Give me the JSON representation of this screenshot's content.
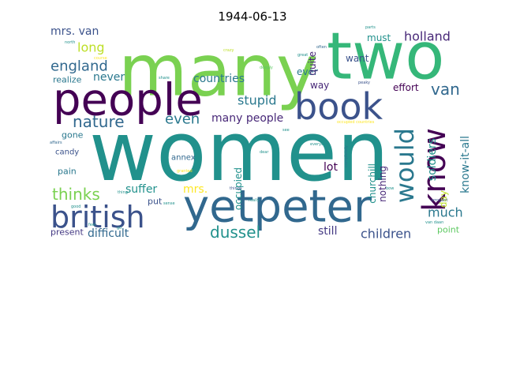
{
  "chart_data": {
    "type": "wordcloud",
    "title": "1944-06-13",
    "colormap": "viridis",
    "background": "#ffffff",
    "words": [
      {
        "text": "women",
        "color": "#21918c"
      },
      {
        "text": "many",
        "color": "#7ad151"
      },
      {
        "text": "two",
        "color": "#35b779"
      },
      {
        "text": "people",
        "color": "#440154"
      },
      {
        "text": "yetpeter",
        "color": "#31688e"
      },
      {
        "text": "book",
        "color": "#3b528b"
      },
      {
        "text": "british",
        "color": "#3b528b"
      },
      {
        "text": "know",
        "color": "#440154"
      },
      {
        "text": "would",
        "color": "#2a788e"
      },
      {
        "text": "nature",
        "color": "#31688e"
      },
      {
        "text": "thinks",
        "color": "#7ad151"
      },
      {
        "text": "dussel",
        "color": "#21918c"
      },
      {
        "text": "van",
        "color": "#31688e"
      },
      {
        "text": "england",
        "color": "#31688e"
      },
      {
        "text": "even",
        "color": "#2a788e"
      },
      {
        "text": "long",
        "color": "#bddf26"
      },
      {
        "text": "stupid",
        "color": "#2a788e"
      },
      {
        "text": "children",
        "color": "#3b528b"
      },
      {
        "text": "much",
        "color": "#2a788e"
      },
      {
        "text": "holland",
        "color": "#482878"
      },
      {
        "text": "mrs. van",
        "color": "#3b528b"
      },
      {
        "text": "never",
        "color": "#2a788e"
      },
      {
        "text": "countries",
        "color": "#2a788e"
      },
      {
        "text": "many people",
        "color": "#482878"
      },
      {
        "text": "know-it-all",
        "color": "#2a788e"
      },
      {
        "text": "soldiers",
        "color": "#21918c"
      },
      {
        "text": "suffer",
        "color": "#21918c"
      },
      {
        "text": "mrs.",
        "color": "#fde725"
      },
      {
        "text": "difficult",
        "color": "#31688e"
      },
      {
        "text": "still",
        "color": "#443983"
      },
      {
        "text": "lot",
        "color": "#440154"
      },
      {
        "text": "churchill",
        "color": "#21918c"
      },
      {
        "text": "occupied",
        "color": "#21918c"
      },
      {
        "text": "nothing",
        "color": "#482878"
      },
      {
        "text": "day",
        "color": "#bddf26"
      },
      {
        "text": "must",
        "color": "#21918c"
      },
      {
        "text": "want",
        "color": "#3b528b"
      },
      {
        "text": "way",
        "color": "#482878"
      },
      {
        "text": "ever",
        "color": "#2a788e"
      },
      {
        "text": "quite",
        "color": "#482878"
      },
      {
        "text": "effort",
        "color": "#440154"
      },
      {
        "text": "realize",
        "color": "#2a788e"
      },
      {
        "text": "gone",
        "color": "#2a788e"
      },
      {
        "text": "candy",
        "color": "#3b528b"
      },
      {
        "text": "pain",
        "color": "#2a788e"
      },
      {
        "text": "annex",
        "color": "#31688e"
      },
      {
        "text": "put",
        "color": "#3b528b"
      },
      {
        "text": "present",
        "color": "#443983"
      },
      {
        "text": "point",
        "color": "#5ec962"
      },
      {
        "text": "crazy",
        "color": "#bddf26"
      },
      {
        "text": "deeply",
        "color": "#5ec962"
      },
      {
        "text": "great",
        "color": "#21918c"
      },
      {
        "text": "occupied countries",
        "color": "#fde725"
      },
      {
        "text": "everyone",
        "color": "#21918c"
      },
      {
        "text": "completely",
        "color": "#2a788e"
      },
      {
        "text": "things",
        "color": "#3b528b"
      },
      {
        "text": "often",
        "color": "#31688e"
      },
      {
        "text": "parts",
        "color": "#21918c"
      },
      {
        "text": "really",
        "color": "#21918c"
      },
      {
        "text": "granted",
        "color": "#fde725"
      },
      {
        "text": "arrogant",
        "color": "#3b528b"
      },
      {
        "text": "van daan",
        "color": "#21918c"
      },
      {
        "text": "affairs",
        "color": "#31688e"
      },
      {
        "text": "course",
        "color": "#fde725"
      },
      {
        "text": "share",
        "color": "#21918c"
      },
      {
        "text": "peaky",
        "color": "#3b528b"
      },
      {
        "text": "north",
        "color": "#21918c"
      },
      {
        "text": "good",
        "color": "#21918c"
      },
      {
        "text": "feel",
        "color": "#21918c"
      },
      {
        "text": "see",
        "color": "#21918c"
      },
      {
        "text": "done",
        "color": "#21918c"
      },
      {
        "text": "bow",
        "color": "#21918c"
      },
      {
        "text": "thing",
        "color": "#21918c"
      },
      {
        "text": "sense",
        "color": "#21918c"
      },
      {
        "text": "dear",
        "color": "#21918c"
      },
      {
        "text": "go",
        "color": "#21918c"
      }
    ]
  }
}
